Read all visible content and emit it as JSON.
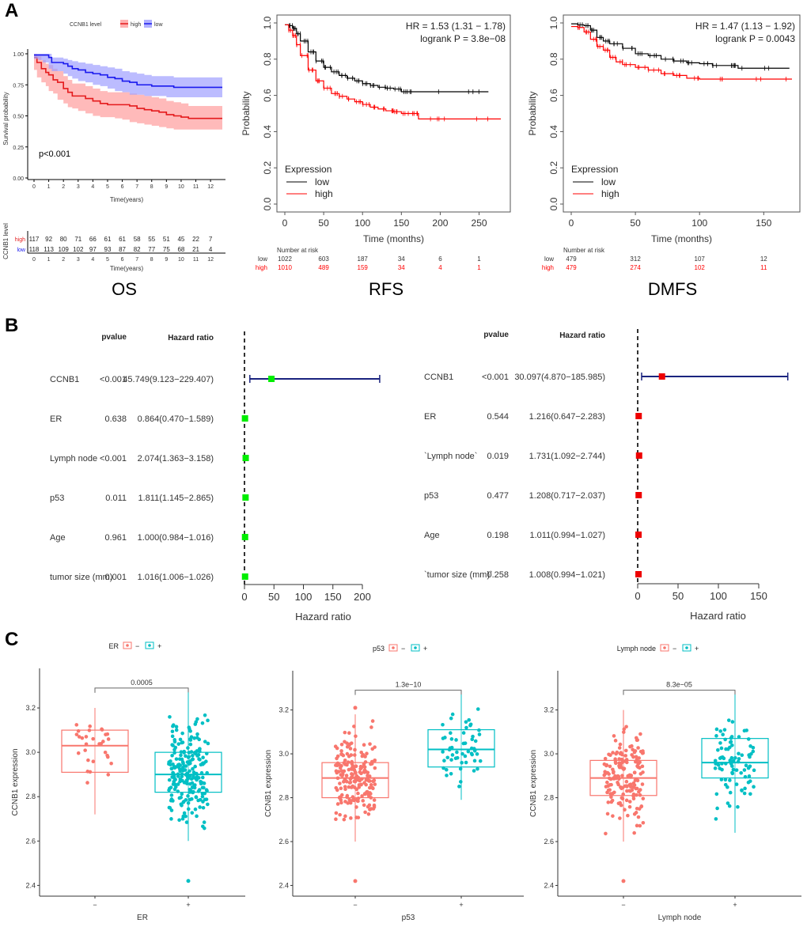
{
  "panels": {
    "A": "A",
    "B": "B",
    "C": "C"
  },
  "subtitles": {
    "os": "OS",
    "rfs": "RFS",
    "dmfs": "DMFS"
  },
  "colors": {
    "red": "#e41a1c",
    "blue": "#1a1aee",
    "km_red": "#ff0000",
    "km_black": "#000000",
    "forest_line": "#1a237e",
    "forest_green": "#00ee00",
    "forest_red": "#ee0000",
    "box_neg": "#f8766d",
    "box_pos": "#00bfc4"
  },
  "chart_data": [
    {
      "id": "os",
      "type": "line",
      "title": "OS",
      "legend_title": "CCNB1 level",
      "legend": [
        "high",
        "low"
      ],
      "xlabel": "Time(years)",
      "ylabel": "Survival probability",
      "xticks": [
        "0",
        "1",
        "2",
        "3",
        "4",
        "5",
        "6",
        "7",
        "8",
        "9",
        "10",
        "11",
        "12"
      ],
      "yticks": [
        "0.00",
        "0.25",
        "0.50",
        "0.75",
        "1.00"
      ],
      "xlim": [
        0,
        12.8
      ],
      "ylim": [
        0,
        1
      ],
      "annotation": "p<0.001",
      "series": [
        {
          "name": "high",
          "x": [
            0,
            0.2,
            0.5,
            0.8,
            1,
            1.3,
            1.6,
            2,
            2.3,
            2.6,
            3,
            3.5,
            4,
            4.5,
            5,
            5.5,
            6,
            6.5,
            7,
            7.5,
            8,
            8.5,
            9,
            9.5,
            10,
            10.5,
            11,
            12,
            12.8
          ],
          "y": [
            0.97,
            0.93,
            0.88,
            0.85,
            0.83,
            0.79,
            0.77,
            0.72,
            0.69,
            0.66,
            0.66,
            0.64,
            0.62,
            0.6,
            0.59,
            0.59,
            0.59,
            0.58,
            0.56,
            0.55,
            0.54,
            0.53,
            0.51,
            0.5,
            0.49,
            0.48,
            0.48,
            0.48,
            0.48
          ],
          "lower": [
            0.93,
            0.87,
            0.81,
            0.77,
            0.74,
            0.7,
            0.68,
            0.63,
            0.6,
            0.57,
            0.56,
            0.54,
            0.52,
            0.5,
            0.49,
            0.49,
            0.48,
            0.47,
            0.45,
            0.44,
            0.43,
            0.42,
            0.41,
            0.4,
            0.39,
            0.39,
            0.39,
            0.39,
            0.39
          ],
          "upper": [
            1.0,
            0.98,
            0.95,
            0.92,
            0.91,
            0.88,
            0.86,
            0.82,
            0.79,
            0.76,
            0.76,
            0.74,
            0.72,
            0.7,
            0.69,
            0.69,
            0.69,
            0.68,
            0.67,
            0.66,
            0.65,
            0.64,
            0.62,
            0.61,
            0.6,
            0.58,
            0.58,
            0.58,
            0.58
          ]
        },
        {
          "name": "low",
          "x": [
            0,
            0.3,
            0.6,
            1,
            1.2,
            2,
            2.3,
            2.6,
            3,
            3.5,
            4,
            4.5,
            5,
            5.5,
            6,
            6.5,
            7,
            7.5,
            8,
            9,
            9.5,
            10,
            11,
            12,
            12.8
          ],
          "y": [
            0.99,
            0.99,
            0.99,
            0.97,
            0.93,
            0.92,
            0.9,
            0.88,
            0.87,
            0.85,
            0.84,
            0.83,
            0.81,
            0.8,
            0.78,
            0.77,
            0.75,
            0.75,
            0.74,
            0.74,
            0.73,
            0.73,
            0.73,
            0.73,
            0.73
          ],
          "lower": [
            0.97,
            0.96,
            0.95,
            0.93,
            0.88,
            0.86,
            0.84,
            0.82,
            0.8,
            0.78,
            0.77,
            0.75,
            0.74,
            0.72,
            0.7,
            0.69,
            0.67,
            0.67,
            0.66,
            0.66,
            0.65,
            0.65,
            0.65,
            0.65,
            0.65
          ],
          "upper": [
            1.0,
            1.0,
            1.0,
            1.0,
            0.97,
            0.96,
            0.95,
            0.94,
            0.93,
            0.92,
            0.91,
            0.9,
            0.89,
            0.88,
            0.86,
            0.85,
            0.84,
            0.83,
            0.82,
            0.82,
            0.81,
            0.81,
            0.81,
            0.81,
            0.81
          ]
        }
      ],
      "risk_table": {
        "ylabel": "CCNB1 level",
        "rows": [
          {
            "name": "high",
            "values": [
              "117",
              "92",
              "80",
              "71",
              "66",
              "61",
              "61",
              "58",
              "55",
              "51",
              "45",
              "22",
              "7"
            ]
          },
          {
            "name": "low",
            "values": [
              "118",
              "113",
              "109",
              "102",
              "97",
              "93",
              "87",
              "82",
              "77",
              "75",
              "68",
              "21",
              "4"
            ]
          }
        ]
      }
    },
    {
      "id": "rfs",
      "type": "line",
      "title": "RFS",
      "annotation_hr": "HR = 1.53 (1.31 − 1.78)",
      "annotation_p": "logrank P = 3.8e−08",
      "legend_title": "Expression",
      "legend": [
        "low",
        "high"
      ],
      "xlabel": "Time (months)",
      "ylabel": "Probability",
      "xticks": [
        "0",
        "50",
        "100",
        "150",
        "200",
        "250"
      ],
      "yticks": [
        "0.0",
        "0.2",
        "0.4",
        "0.6",
        "0.8",
        "1.0"
      ],
      "xlim": [
        0,
        280
      ],
      "ylim": [
        0,
        1
      ],
      "series": [
        {
          "name": "low",
          "x": [
            0,
            5,
            10,
            15,
            20,
            30,
            40,
            50,
            60,
            70,
            80,
            90,
            100,
            110,
            120,
            130,
            140,
            150,
            160,
            200,
            262
          ],
          "y": [
            0.99,
            0.985,
            0.97,
            0.94,
            0.9,
            0.84,
            0.79,
            0.755,
            0.73,
            0.71,
            0.695,
            0.68,
            0.665,
            0.655,
            0.645,
            0.64,
            0.635,
            0.62,
            0.62,
            0.62,
            0.62
          ]
        },
        {
          "name": "high",
          "x": [
            0,
            5,
            10,
            15,
            20,
            30,
            40,
            50,
            60,
            70,
            80,
            90,
            100,
            110,
            120,
            130,
            140,
            150,
            160,
            170,
            172,
            200,
            278
          ],
          "y": [
            0.99,
            0.96,
            0.93,
            0.88,
            0.82,
            0.74,
            0.68,
            0.64,
            0.61,
            0.595,
            0.58,
            0.565,
            0.55,
            0.535,
            0.525,
            0.515,
            0.51,
            0.5,
            0.5,
            0.5,
            0.47,
            0.47,
            0.47
          ]
        }
      ],
      "risk_table": {
        "label": "Number at risk",
        "rows": [
          {
            "name": "low",
            "values": [
              "1022",
              "603",
              "187",
              "34",
              "6",
              "1"
            ]
          },
          {
            "name": "high",
            "values": [
              "1010",
              "489",
              "159",
              "34",
              "4",
              "1"
            ]
          }
        ]
      }
    },
    {
      "id": "dmfs",
      "type": "line",
      "title": "DMFS",
      "annotation_hr": "HR = 1.47 (1.13 − 1.92)",
      "annotation_p": "logrank P = 0.0043",
      "legend_title": "Expression",
      "legend": [
        "low",
        "high"
      ],
      "xlabel": "Time (months)",
      "ylabel": "Probability",
      "xticks": [
        "0",
        "50",
        "100",
        "150"
      ],
      "yticks": [
        "0.0",
        "0.2",
        "0.4",
        "0.6",
        "0.8",
        "1.0"
      ],
      "xlim": [
        0,
        172
      ],
      "ylim": [
        0,
        1
      ],
      "series": [
        {
          "name": "low",
          "x": [
            0,
            5,
            10,
            15,
            20,
            25,
            30,
            40,
            50,
            60,
            70,
            80,
            90,
            100,
            110,
            120,
            127,
            130,
            170
          ],
          "y": [
            0.995,
            0.99,
            0.985,
            0.96,
            0.92,
            0.9,
            0.885,
            0.86,
            0.83,
            0.82,
            0.8,
            0.79,
            0.78,
            0.775,
            0.765,
            0.765,
            0.765,
            0.75,
            0.75
          ]
        },
        {
          "name": "high",
          "x": [
            0,
            5,
            10,
            15,
            20,
            25,
            30,
            35,
            40,
            50,
            60,
            70,
            80,
            90,
            100,
            120,
            172
          ],
          "y": [
            0.98,
            0.975,
            0.95,
            0.91,
            0.87,
            0.85,
            0.81,
            0.785,
            0.77,
            0.755,
            0.74,
            0.72,
            0.71,
            0.695,
            0.69,
            0.69,
            0.69
          ]
        }
      ],
      "risk_table": {
        "label": "Number at risk",
        "rows": [
          {
            "name": "low",
            "values": [
              "479",
              "312",
              "107",
              "12"
            ]
          },
          {
            "name": "high",
            "values": [
              "479",
              "274",
              "102",
              "11"
            ]
          }
        ]
      }
    },
    {
      "id": "forest1",
      "type": "scatter",
      "title": "",
      "col_headers": {
        "pvalue": "pvalue",
        "hr": "Hazard ratio"
      },
      "xlabel": "Hazard ratio",
      "xticks": [
        "0",
        "50",
        "100",
        "150",
        "200"
      ],
      "xlim": [
        0,
        230
      ],
      "marker_color": "green",
      "rows": [
        {
          "label": "CCNB1",
          "pvalue": "<0.001",
          "hr_text": "45.749(9.123−229.407)",
          "hr": 45.749,
          "lo": 9.123,
          "hi": 229.407
        },
        {
          "label": "ER",
          "pvalue": "0.638",
          "hr_text": "0.864(0.470−1.589)",
          "hr": 0.864,
          "lo": 0.47,
          "hi": 1.589
        },
        {
          "label": "Lymph node",
          "pvalue": "<0.001",
          "hr_text": "2.074(1.363−3.158)",
          "hr": 2.074,
          "lo": 1.363,
          "hi": 3.158
        },
        {
          "label": "p53",
          "pvalue": "0.011",
          "hr_text": "1.811(1.145−2.865)",
          "hr": 1.811,
          "lo": 1.145,
          "hi": 2.865
        },
        {
          "label": "Age",
          "pvalue": "0.961",
          "hr_text": "1.000(0.984−1.016)",
          "hr": 1.0,
          "lo": 0.984,
          "hi": 1.016
        },
        {
          "label": "tumor size (mm)",
          "pvalue": "0.001",
          "hr_text": "1.016(1.006−1.026)",
          "hr": 1.016,
          "lo": 1.006,
          "hi": 1.026
        }
      ]
    },
    {
      "id": "forest2",
      "type": "scatter",
      "title": "",
      "col_headers": {
        "pvalue": "pvalue",
        "hr": "Hazard ratio"
      },
      "xlabel": "Hazard ratio",
      "xticks": [
        "0",
        "50",
        "100",
        "150"
      ],
      "xlim": [
        0,
        186
      ],
      "marker_color": "red",
      "rows": [
        {
          "label": "CCNB1",
          "pvalue": "<0.001",
          "hr_text": "30.097(4.870−185.985)",
          "hr": 30.097,
          "lo": 4.87,
          "hi": 185.985
        },
        {
          "label": "ER",
          "pvalue": "0.544",
          "hr_text": "1.216(0.647−2.283)",
          "hr": 1.216,
          "lo": 0.647,
          "hi": 2.283
        },
        {
          "label": "`Lymph node`",
          "pvalue": "0.019",
          "hr_text": "1.731(1.092−2.744)",
          "hr": 1.731,
          "lo": 1.092,
          "hi": 2.744
        },
        {
          "label": "p53",
          "pvalue": "0.477",
          "hr_text": "1.208(0.717−2.037)",
          "hr": 1.208,
          "lo": 0.717,
          "hi": 2.037
        },
        {
          "label": "Age",
          "pvalue": "0.198",
          "hr_text": "1.011(0.994−1.027)",
          "hr": 1.011,
          "lo": 0.994,
          "hi": 1.027
        },
        {
          "label": "`tumor size (mm)`",
          "pvalue": "0.258",
          "hr_text": "1.008(0.994−1.021)",
          "hr": 1.008,
          "lo": 0.994,
          "hi": 1.021
        }
      ]
    },
    {
      "id": "box_er",
      "type": "scatter",
      "title": "",
      "legend_title": "ER",
      "legend": [
        "−",
        "+"
      ],
      "xlabel": "ER",
      "ylabel": "CCNB1 expression",
      "categories": [
        "−",
        "+"
      ],
      "yticks": [
        "2.4",
        "2.6",
        "2.8",
        "3.0",
        "3.2"
      ],
      "ylim": [
        2.38,
        3.35
      ],
      "pvalue": "0.0005",
      "boxes": [
        {
          "name": "−",
          "q1": 2.91,
          "median": 3.03,
          "q3": 3.1,
          "whisker_low": 2.72,
          "whisker_high": 3.2,
          "n_points": 30,
          "seed": 11
        },
        {
          "name": "+",
          "q1": 2.82,
          "median": 2.9,
          "q3": 3.0,
          "whisker_low": 2.6,
          "whisker_high": 3.27,
          "n_points": 220,
          "seed": 23,
          "outliers": [
            2.42
          ]
        }
      ]
    },
    {
      "id": "box_p53",
      "type": "scatter",
      "title": "",
      "legend_title": "p53",
      "legend": [
        "−",
        "+"
      ],
      "xlabel": "p53",
      "ylabel": "CCNB1 expression",
      "categories": [
        "−",
        "+"
      ],
      "yticks": [
        "2.4",
        "2.6",
        "2.8",
        "3.0",
        "3.2"
      ],
      "ylim": [
        2.38,
        3.35
      ],
      "pvalue": "1.3e−10",
      "boxes": [
        {
          "name": "−",
          "q1": 2.8,
          "median": 2.89,
          "q3": 2.96,
          "whisker_low": 2.6,
          "whisker_high": 3.18,
          "n_points": 200,
          "seed": 31,
          "outliers": [
            2.42,
            3.21
          ]
        },
        {
          "name": "+",
          "q1": 2.94,
          "median": 3.02,
          "q3": 3.11,
          "whisker_low": 2.79,
          "whisker_high": 3.27,
          "n_points": 55,
          "seed": 37
        }
      ]
    },
    {
      "id": "box_lymph",
      "type": "scatter",
      "title": "",
      "legend_title": "Lymph node",
      "legend": [
        "−",
        "+"
      ],
      "xlabel": "Lymph node",
      "ylabel": "CCNB1 expression",
      "categories": [
        "−",
        "+"
      ],
      "yticks": [
        "2.4",
        "2.6",
        "2.8",
        "3.0",
        "3.2"
      ],
      "ylim": [
        2.38,
        3.35
      ],
      "pvalue": "8.3e−05",
      "boxes": [
        {
          "name": "−",
          "q1": 2.81,
          "median": 2.89,
          "q3": 2.97,
          "whisker_low": 2.6,
          "whisker_high": 3.2,
          "n_points": 170,
          "seed": 41,
          "outliers": [
            2.42
          ]
        },
        {
          "name": "+",
          "q1": 2.89,
          "median": 2.96,
          "q3": 3.07,
          "whisker_low": 2.64,
          "whisker_high": 3.27,
          "n_points": 85,
          "seed": 47
        }
      ]
    }
  ]
}
